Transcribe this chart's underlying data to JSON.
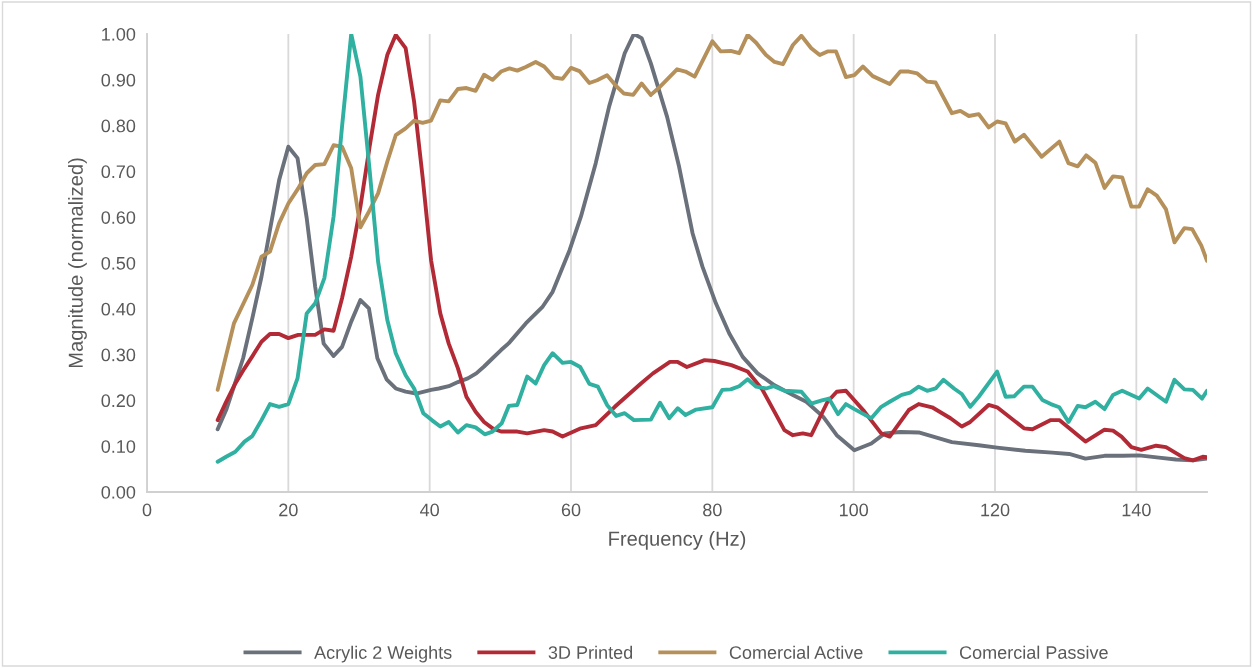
{
  "chart_data": {
    "type": "line",
    "xlabel": "Frequency (Hz)",
    "ylabel": "Magnitude (normalized)",
    "xlim": [
      0,
      150
    ],
    "xticks": [
      0,
      20,
      40,
      60,
      80,
      100,
      120,
      140
    ],
    "ylim": [
      0,
      1
    ],
    "yticks": [
      {
        "value": 0,
        "label": "0.00"
      },
      {
        "value": 0.1,
        "label": "0.10"
      },
      {
        "value": 0.2,
        "label": "0.20"
      },
      {
        "value": 0.3,
        "label": "0.30"
      },
      {
        "value": 0.4,
        "label": "0.40"
      },
      {
        "value": 0.5,
        "label": "0.50"
      },
      {
        "value": 0.6,
        "label": "0.60"
      },
      {
        "value": 0.7,
        "label": "0.70"
      },
      {
        "value": 0.8,
        "label": "0.80"
      },
      {
        "value": 0.9,
        "label": "0.90"
      },
      {
        "value": 1,
        "label": "1.00"
      }
    ],
    "grid": "x",
    "legend": "bottom",
    "marker": "none",
    "line_style": "solid",
    "series": [
      {
        "name": "Acrylic 2 Weights",
        "color": "#6a717a",
        "x": [
          10,
          11.2,
          12.3,
          13.6,
          14.9,
          16.2,
          17.4,
          18.7,
          20,
          21.3,
          22.6,
          23.8,
          25,
          26.4,
          27.6,
          28.9,
          30.2,
          31.4,
          32.6,
          33.9,
          35.2,
          36.6,
          38.1,
          40.2,
          41.3,
          42.7,
          44,
          45.4,
          46.6,
          47.7,
          48.9,
          50.1,
          51.2,
          53.6,
          56,
          57.4,
          59.8,
          61.4,
          63.5,
          65.4,
          67.6,
          68.9,
          70,
          71.3,
          73.6,
          75.3,
          77.2,
          78.6,
          80.5,
          82.4,
          84.3,
          86.4,
          88.8,
          91.4,
          93.3,
          95.7,
          97.6,
          100.1,
          102.5,
          104.4,
          106.6,
          109.2,
          111.5,
          113.9,
          117.7,
          120.3,
          124.3,
          128.1,
          130.5,
          132.8,
          135.5,
          138.1,
          140.4,
          143.2,
          145.6,
          148,
          150
        ],
        "values": [
          0.137,
          0.179,
          0.23,
          0.292,
          0.379,
          0.47,
          0.572,
          0.681,
          0.754,
          0.729,
          0.598,
          0.448,
          0.324,
          0.297,
          0.317,
          0.372,
          0.419,
          0.401,
          0.292,
          0.246,
          0.226,
          0.219,
          0.215,
          0.223,
          0.226,
          0.231,
          0.24,
          0.248,
          0.259,
          0.274,
          0.292,
          0.31,
          0.325,
          0.368,
          0.405,
          0.437,
          0.528,
          0.601,
          0.718,
          0.842,
          0.958,
          1.0,
          0.991,
          0.936,
          0.819,
          0.71,
          0.565,
          0.492,
          0.412,
          0.346,
          0.295,
          0.259,
          0.233,
          0.212,
          0.197,
          0.164,
          0.124,
          0.091,
          0.106,
          0.128,
          0.131,
          0.13,
          0.12,
          0.109,
          0.102,
          0.097,
          0.09,
          0.086,
          0.083,
          0.073,
          0.079,
          0.079,
          0.08,
          0.075,
          0.071,
          0.069,
          0.073
        ]
      },
      {
        "name": "3D Printed",
        "color": "#b22a35",
        "x": [
          10,
          11.2,
          12.5,
          13.8,
          14.9,
          16.2,
          17.4,
          18.7,
          20,
          21.4,
          23.8,
          25.1,
          26.4,
          27.6,
          28.9,
          30.2,
          31.5,
          32.7,
          34,
          35.2,
          36.6,
          37.8,
          39,
          40.2,
          41.5,
          42.7,
          44,
          45.2,
          46.5,
          47.7,
          48.9,
          50.1,
          52.4,
          53.8,
          56.2,
          57.4,
          58.8,
          61.4,
          63.5,
          66.2,
          69.9,
          71.6,
          74,
          75.1,
          76.4,
          78.9,
          80.3,
          82.7,
          85,
          87.1,
          88.8,
          90.2,
          91.4,
          92.8,
          94,
          96.3,
          97.6,
          98.9,
          101.5,
          103.9,
          105.1,
          107.8,
          109.2,
          111.1,
          113.7,
          115.3,
          116.5,
          119.1,
          120.3,
          124.1,
          125.3,
          127.9,
          129.1,
          132.8,
          135.5,
          136.7,
          137.9,
          139.3,
          140.7,
          142.8,
          144.2,
          146.8,
          148,
          149.4,
          150
        ],
        "values": [
          0.157,
          0.197,
          0.237,
          0.27,
          0.296,
          0.328,
          0.345,
          0.345,
          0.336,
          0.343,
          0.343,
          0.355,
          0.352,
          0.423,
          0.514,
          0.623,
          0.754,
          0.867,
          0.954,
          0.998,
          0.969,
          0.852,
          0.688,
          0.506,
          0.39,
          0.324,
          0.27,
          0.208,
          0.175,
          0.153,
          0.139,
          0.132,
          0.132,
          0.128,
          0.135,
          0.132,
          0.121,
          0.139,
          0.146,
          0.186,
          0.237,
          0.259,
          0.284,
          0.284,
          0.273,
          0.288,
          0.286,
          0.277,
          0.263,
          0.223,
          0.175,
          0.135,
          0.124,
          0.128,
          0.124,
          0.197,
          0.219,
          0.221,
          0.176,
          0.128,
          0.121,
          0.179,
          0.192,
          0.185,
          0.161,
          0.143,
          0.153,
          0.19,
          0.185,
          0.139,
          0.137,
          0.157,
          0.157,
          0.11,
          0.136,
          0.134,
          0.121,
          0.098,
          0.092,
          0.101,
          0.098,
          0.074,
          0.069,
          0.077,
          0.076
        ]
      },
      {
        "name": "Comercial Active",
        "color": "#b5905a",
        "x": [
          10,
          12.3,
          14.9,
          16.2,
          17.4,
          18.7,
          20,
          21.4,
          22.6,
          23.8,
          25.1,
          26.4,
          27.6,
          28.9,
          30.2,
          31.4,
          32.7,
          34,
          35.2,
          36.6,
          37.8,
          39,
          40.2,
          41.5,
          42.7,
          44,
          45.2,
          46.5,
          47.7,
          48.9,
          50.1,
          51.3,
          52.4,
          53.6,
          55,
          56.2,
          57.6,
          58.8,
          60,
          61.2,
          62.6,
          63.7,
          65.1,
          66.3,
          67.5,
          68.8,
          70,
          71.3,
          72.4,
          75,
          76.2,
          77.5,
          80,
          81.2,
          82.6,
          83.8,
          85,
          86.2,
          87.6,
          88.8,
          90,
          91.4,
          92.6,
          94,
          95.2,
          96.3,
          97.5,
          98.9,
          100.1,
          101.3,
          102.7,
          105.1,
          106.6,
          107.8,
          109,
          110.4,
          111.6,
          113.9,
          115.1,
          116.3,
          117.7,
          119.1,
          120.3,
          121.5,
          122.8,
          124.1,
          126.6,
          129.1,
          130.4,
          131.7,
          132.9,
          134.2,
          135.5,
          136.7,
          138,
          139.3,
          140.4,
          141.6,
          142.9,
          144.2,
          145.4,
          146.8,
          147.9,
          149.2,
          150
        ],
        "values": [
          0.223,
          0.368,
          0.452,
          0.514,
          0.525,
          0.587,
          0.63,
          0.663,
          0.696,
          0.714,
          0.716,
          0.757,
          0.754,
          0.707,
          0.578,
          0.612,
          0.652,
          0.721,
          0.779,
          0.794,
          0.811,
          0.806,
          0.811,
          0.855,
          0.853,
          0.88,
          0.882,
          0.876,
          0.911,
          0.9,
          0.918,
          0.925,
          0.92,
          0.928,
          0.939,
          0.929,
          0.905,
          0.902,
          0.926,
          0.919,
          0.893,
          0.899,
          0.91,
          0.888,
          0.87,
          0.867,
          0.892,
          0.867,
          0.882,
          0.923,
          0.918,
          0.907,
          0.984,
          0.962,
          0.963,
          0.958,
          0.998,
          0.981,
          0.954,
          0.939,
          0.934,
          0.976,
          0.996,
          0.969,
          0.954,
          0.962,
          0.962,
          0.906,
          0.91,
          0.929,
          0.908,
          0.891,
          0.918,
          0.918,
          0.914,
          0.896,
          0.894,
          0.827,
          0.832,
          0.821,
          0.825,
          0.796,
          0.809,
          0.805,
          0.765,
          0.78,
          0.732,
          0.765,
          0.718,
          0.711,
          0.735,
          0.719,
          0.664,
          0.689,
          0.687,
          0.623,
          0.623,
          0.661,
          0.647,
          0.617,
          0.545,
          0.576,
          0.574,
          0.538,
          0.505
        ]
      },
      {
        "name": "Comercial Passive",
        "color": "#2fb0a0",
        "x": [
          10,
          11.2,
          12.5,
          13.8,
          14.9,
          16.2,
          17.4,
          18.7,
          20,
          21.3,
          22.6,
          23.8,
          25.1,
          26.4,
          27.6,
          28.9,
          30.2,
          31.5,
          32.7,
          34,
          35.2,
          36.6,
          37.8,
          39.1,
          40.3,
          41.5,
          42.7,
          44,
          45.2,
          46.5,
          47.8,
          48.9,
          50.2,
          51.2,
          52.4,
          53.8,
          55,
          56.2,
          57.4,
          58.8,
          60,
          61.3,
          62.6,
          63.8,
          65.1,
          66.4,
          67.6,
          68.9,
          71.3,
          72.6,
          73.9,
          75.1,
          76.2,
          77.7,
          80,
          81.4,
          82.6,
          83.8,
          85,
          86.2,
          87.6,
          88.7,
          90.2,
          92.6,
          94,
          95.5,
          96.5,
          97.8,
          98.9,
          100.1,
          102.5,
          103.9,
          105.1,
          106.8,
          108,
          109.2,
          110.4,
          111.6,
          112.7,
          114.2,
          115.3,
          116.5,
          117.7,
          120.3,
          121.5,
          122.7,
          124.1,
          125.3,
          126.7,
          127.9,
          129.1,
          130.4,
          131.7,
          132.8,
          134.2,
          135.5,
          136.7,
          138,
          140.4,
          141.6,
          144.2,
          145.4,
          146.8,
          148,
          149.3,
          150
        ],
        "values": [
          0.066,
          0.077,
          0.088,
          0.11,
          0.122,
          0.157,
          0.192,
          0.186,
          0.192,
          0.248,
          0.39,
          0.412,
          0.467,
          0.601,
          0.798,
          1.0,
          0.907,
          0.703,
          0.503,
          0.376,
          0.303,
          0.255,
          0.226,
          0.172,
          0.157,
          0.143,
          0.153,
          0.13,
          0.146,
          0.141,
          0.126,
          0.132,
          0.15,
          0.188,
          0.19,
          0.252,
          0.237,
          0.277,
          0.303,
          0.282,
          0.284,
          0.273,
          0.236,
          0.23,
          0.19,
          0.166,
          0.172,
          0.157,
          0.158,
          0.195,
          0.161,
          0.183,
          0.168,
          0.18,
          0.185,
          0.223,
          0.224,
          0.231,
          0.246,
          0.23,
          0.226,
          0.231,
          0.221,
          0.219,
          0.193,
          0.2,
          0.204,
          0.17,
          0.192,
          0.181,
          0.161,
          0.186,
          0.197,
          0.212,
          0.217,
          0.23,
          0.221,
          0.226,
          0.245,
          0.226,
          0.214,
          0.186,
          0.208,
          0.263,
          0.208,
          0.209,
          0.23,
          0.23,
          0.201,
          0.192,
          0.185,
          0.153,
          0.188,
          0.185,
          0.197,
          0.181,
          0.212,
          0.221,
          0.204,
          0.226,
          0.197,
          0.245,
          0.224,
          0.223,
          0.204,
          0.221
        ]
      }
    ]
  }
}
